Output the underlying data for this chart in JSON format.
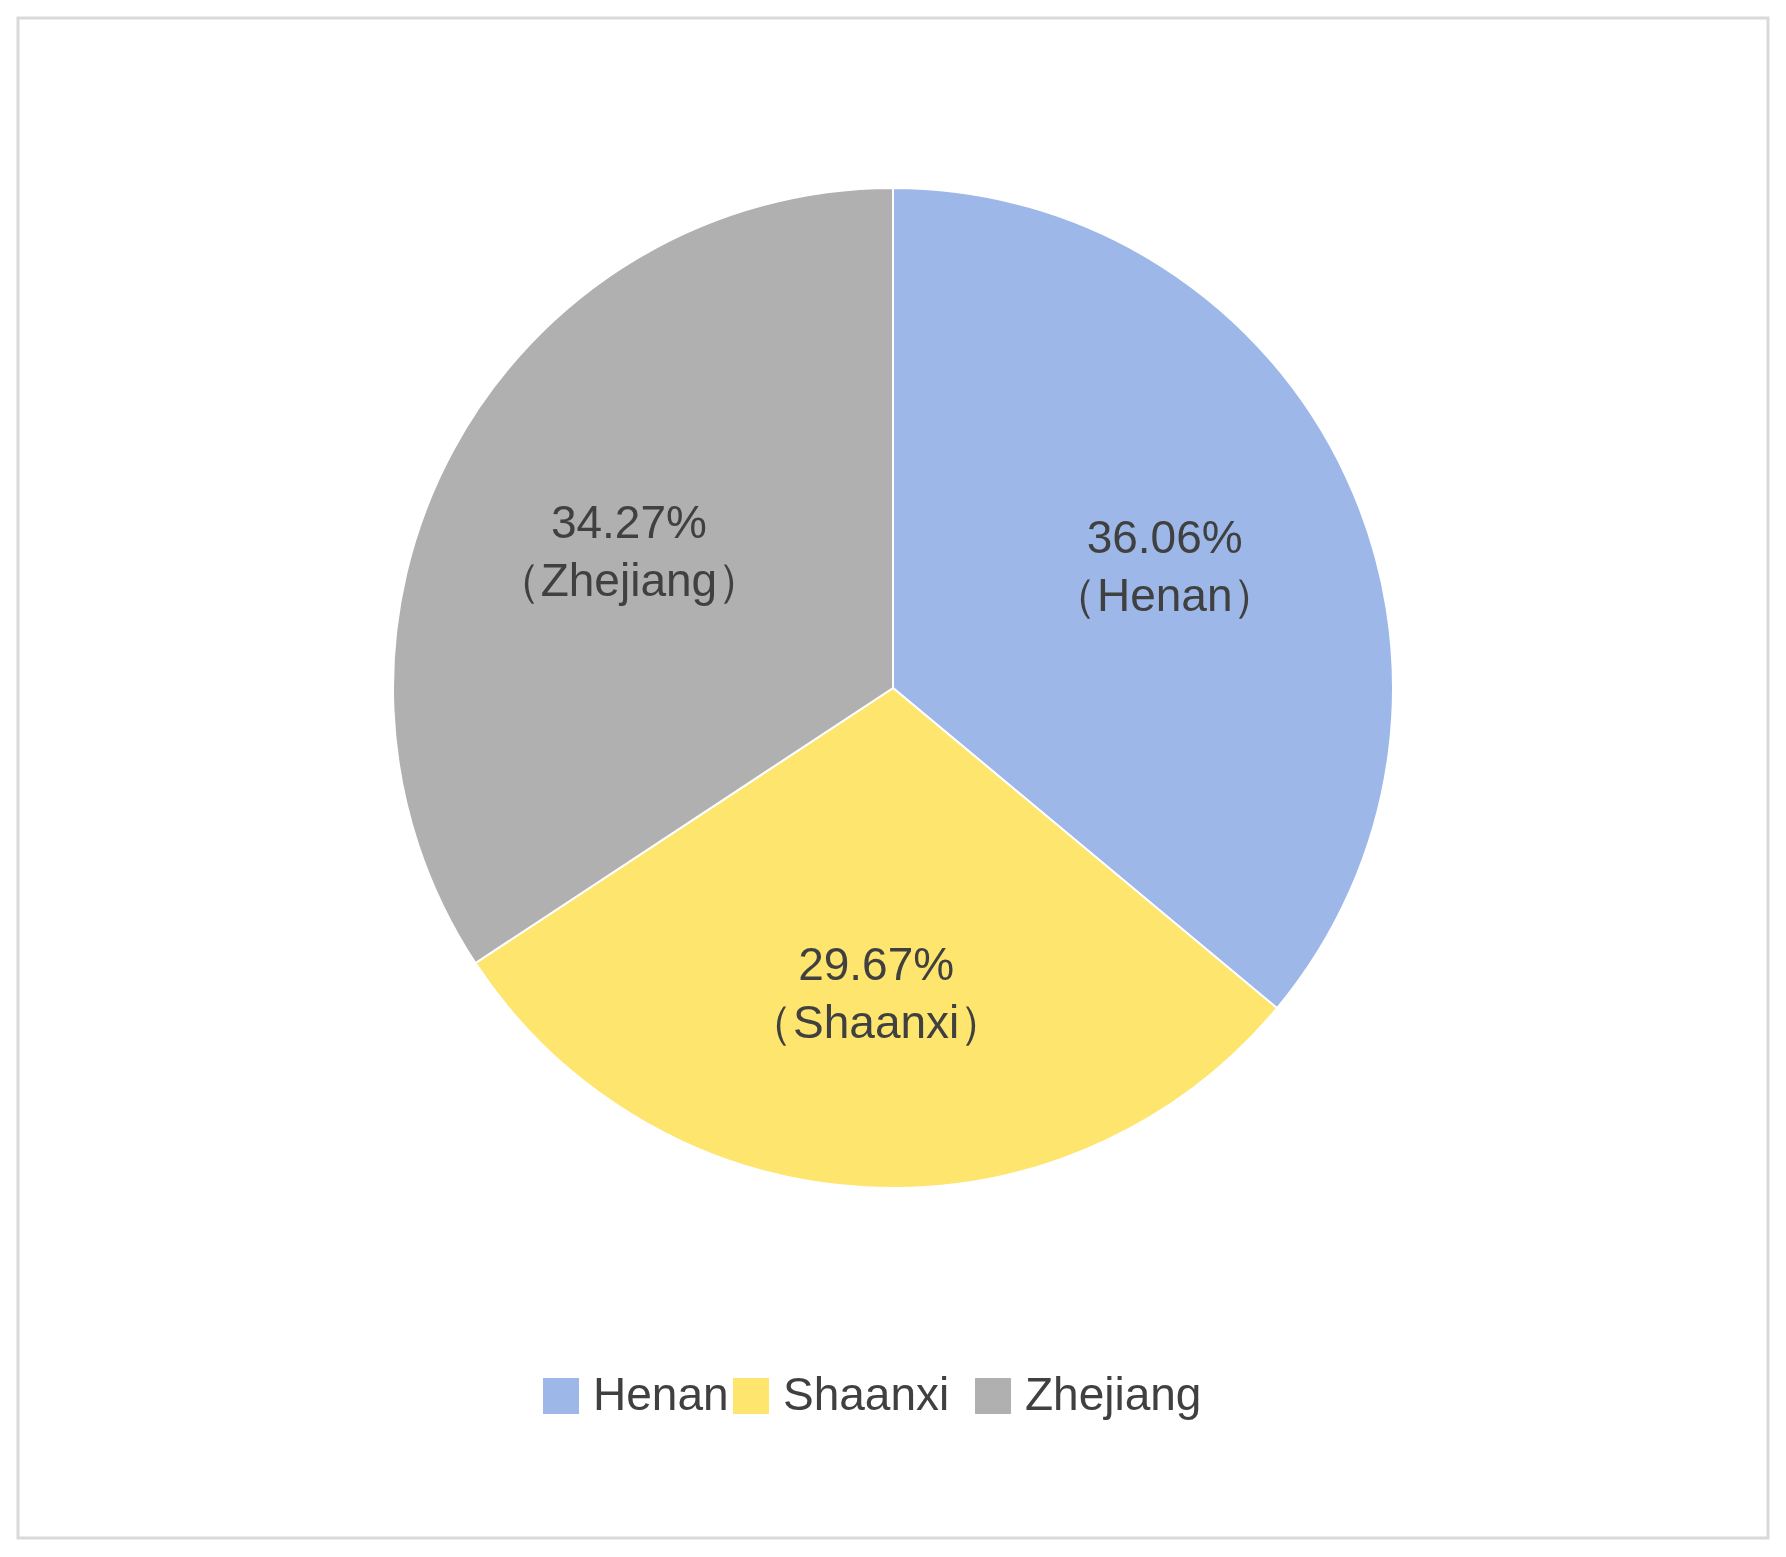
{
  "chart_data": {
    "type": "pie",
    "categories": [
      "Henan",
      "Shaanxi",
      "Zhejiang"
    ],
    "values": [
      36.06,
      29.67,
      34.27
    ],
    "colors": [
      "#9db8e8",
      "#fde56e",
      "#b0b0b0"
    ],
    "value_labels": [
      "36.06%\n（Henan）",
      "29.67%\n（Shaanxi）",
      "34.27%\n（Zhejiang）"
    ],
    "legend": "bottom"
  }
}
